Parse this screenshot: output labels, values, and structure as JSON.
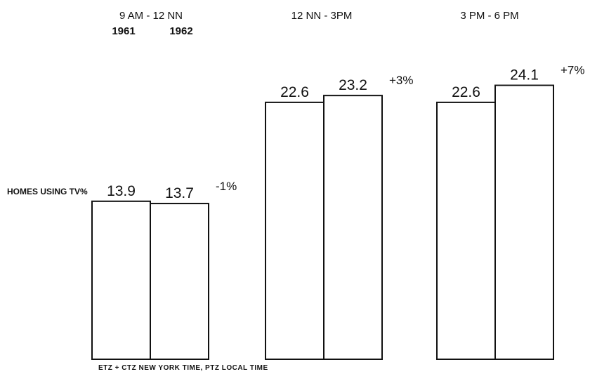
{
  "chart_data": {
    "type": "bar",
    "ylabel": "HOMES USING TV%",
    "footnote": "ETZ + CTZ NEW YORK TIME, PTZ LOCAL TIME",
    "legend_years": [
      "1961",
      "1962"
    ],
    "categories": [
      "9 AM - 12 NN",
      "12 NN - 3PM",
      "3 PM - 6 PM"
    ],
    "series": [
      {
        "name": "1961",
        "values": [
          13.9,
          22.6,
          22.6
        ]
      },
      {
        "name": "1962",
        "values": [
          13.7,
          23.2,
          24.1
        ]
      }
    ],
    "value_labels": [
      [
        "13.9",
        "13.7"
      ],
      [
        "22.6",
        "23.2"
      ],
      [
        "22.6",
        "24.1"
      ]
    ],
    "changes": [
      "-1%",
      "+3%",
      "+7%"
    ],
    "ylim": [
      0,
      25
    ],
    "grid": false,
    "bar_fill": "#ffffff",
    "bar_stroke": "#111111"
  }
}
